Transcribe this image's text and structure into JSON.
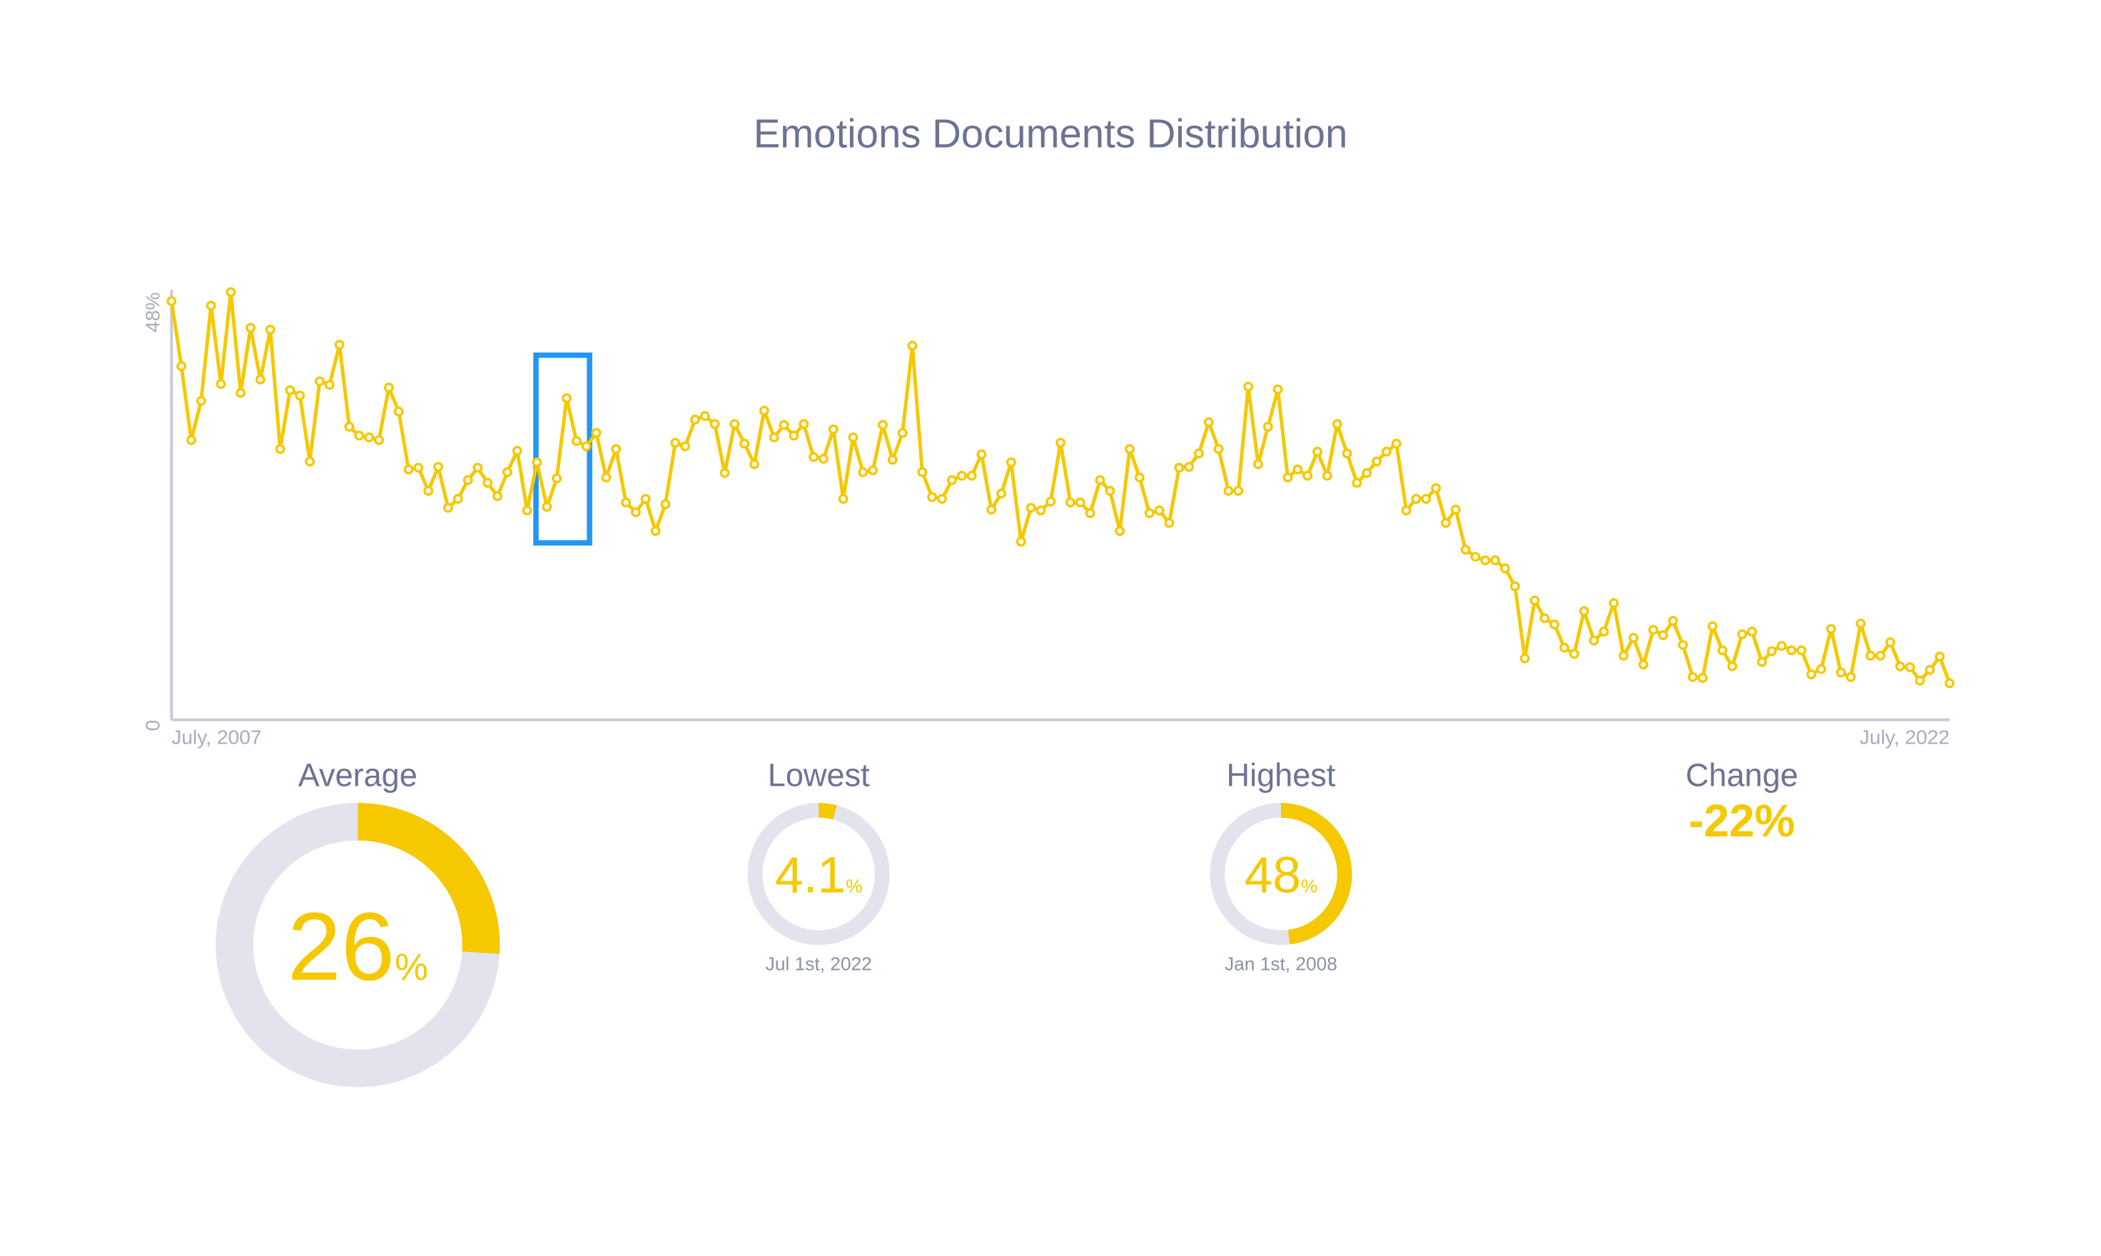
{
  "chart_data": {
    "type": "line",
    "title": "Emotions Documents Distribution",
    "color": "#f5c800",
    "categories": [
      "July, 2007",
      null,
      null,
      null,
      null,
      null,
      null,
      null,
      null,
      null,
      null,
      null,
      null,
      null,
      null,
      null,
      null,
      null,
      null,
      null,
      null,
      null,
      null,
      null,
      null,
      null,
      null,
      null,
      null,
      null,
      null,
      null,
      null,
      null,
      null,
      null,
      null,
      null,
      null,
      null,
      null,
      null,
      null,
      null,
      null,
      null,
      null,
      null,
      null,
      null,
      null,
      null,
      null,
      null,
      null,
      null,
      null,
      null,
      null,
      null,
      null,
      null,
      null,
      null,
      null,
      null,
      null,
      null,
      null,
      null,
      null,
      null,
      null,
      null,
      null,
      null,
      null,
      null,
      null,
      null,
      null,
      null,
      null,
      null,
      null,
      null,
      null,
      null,
      null,
      null,
      null,
      null,
      null,
      null,
      null,
      null,
      null,
      null,
      null,
      null,
      null,
      null,
      null,
      null,
      null,
      null,
      null,
      null,
      null,
      null,
      null,
      null,
      null,
      null,
      null,
      null,
      null,
      null,
      null,
      null,
      null,
      null,
      null,
      null,
      null,
      null,
      null,
      null,
      null,
      null,
      null,
      null,
      null,
      null,
      null,
      null,
      null,
      null,
      null,
      null,
      null,
      null,
      null,
      null,
      null,
      null,
      null,
      null,
      null,
      null,
      null,
      null,
      null,
      null,
      null,
      null,
      null,
      null,
      null,
      null,
      null,
      null,
      null,
      null,
      null,
      null,
      null,
      null,
      null,
      null,
      null,
      null,
      null,
      null,
      null,
      null,
      null,
      null,
      null,
      null,
      "July, 2022"
    ],
    "values": [
      47,
      39.7,
      31.4,
      35.8,
      46.5,
      37.7,
      48,
      36.7,
      44,
      38.2,
      43.8,
      30.4,
      37,
      36.4,
      29,
      38,
      37.6,
      42.1,
      32.9,
      31.9,
      31.7,
      31.4,
      37.3,
      34.6,
      28.1,
      28.3,
      25.7,
      28.4,
      23.8,
      24.8,
      26.9,
      28.3,
      26.6,
      25.1,
      27.8,
      30.2,
      23.5,
      28.9,
      23.9,
      27.1,
      36.1,
      31.3,
      30.7,
      32.2,
      27.2,
      30.4,
      24.4,
      23.3,
      24.8,
      21.2,
      24.2,
      31.1,
      30.7,
      33.7,
      34.1,
      33.2,
      27.7,
      33.2,
      31,
      28.7,
      34.7,
      31.7,
      33.1,
      31.9,
      33.2,
      29.5,
      29.3,
      32.6,
      24.8,
      31.7,
      27.8,
      28,
      33.1,
      29.2,
      32.2,
      42,
      27.8,
      25,
      24.8,
      26.9,
      27.4,
      27.4,
      29.8,
      23.6,
      25.4,
      28.9,
      20,
      23.8,
      23.5,
      24.5,
      31.1,
      24.4,
      24.4,
      23.2,
      26.9,
      25.7,
      21.2,
      30.4,
      27.2,
      23.2,
      23.5,
      22.1,
      28.3,
      28.4,
      29.9,
      33.4,
      30.4,
      25.7,
      25.7,
      37.4,
      28.7,
      32.9,
      37.1,
      27.2,
      28.1,
      27.4,
      30.1,
      27.4,
      33.2,
      29.9,
      26.6,
      27.7,
      29,
      30.1,
      31,
      23.5,
      24.8,
      24.8,
      26,
      22.1,
      23.6,
      19.1,
      18.3,
      17.9,
      17.9,
      17,
      15,
      6.9,
      13.4,
      11.4,
      10.7,
      8.1,
      7.4,
      12.2,
      8.9,
      9.9,
      13.1,
      7.2,
      9.2,
      6.2,
      10.1,
      9.5,
      11.1,
      8.4,
      4.8,
      4.7,
      10.5,
      7.8,
      6,
      9.6,
      9.9,
      6.5,
      7.7,
      8.3,
      7.8,
      7.8,
      5.1,
      5.7,
      10.2,
      5.3,
      4.8,
      10.8,
      7.2,
      7.2,
      8.7,
      6,
      5.9,
      4.4,
      5.6,
      7.1,
      4.1
    ],
    "ylim": [
      0,
      48
    ],
    "yticks": [
      0,
      {
        "value": 48,
        "label": "48%"
      }
    ],
    "grid": false
  },
  "stats": [
    {
      "title": "Average",
      "value": 26,
      "unit": "%"
    },
    {
      "title": "Lowest",
      "value": 4.1,
      "unit": "%",
      "date": "Jul 1st, 2022"
    },
    {
      "title": "Highest",
      "value": 48,
      "unit": "%",
      "date": "Jan 1st, 2008"
    }
  ],
  "change": {
    "title": "Change",
    "value": "-22%"
  }
}
